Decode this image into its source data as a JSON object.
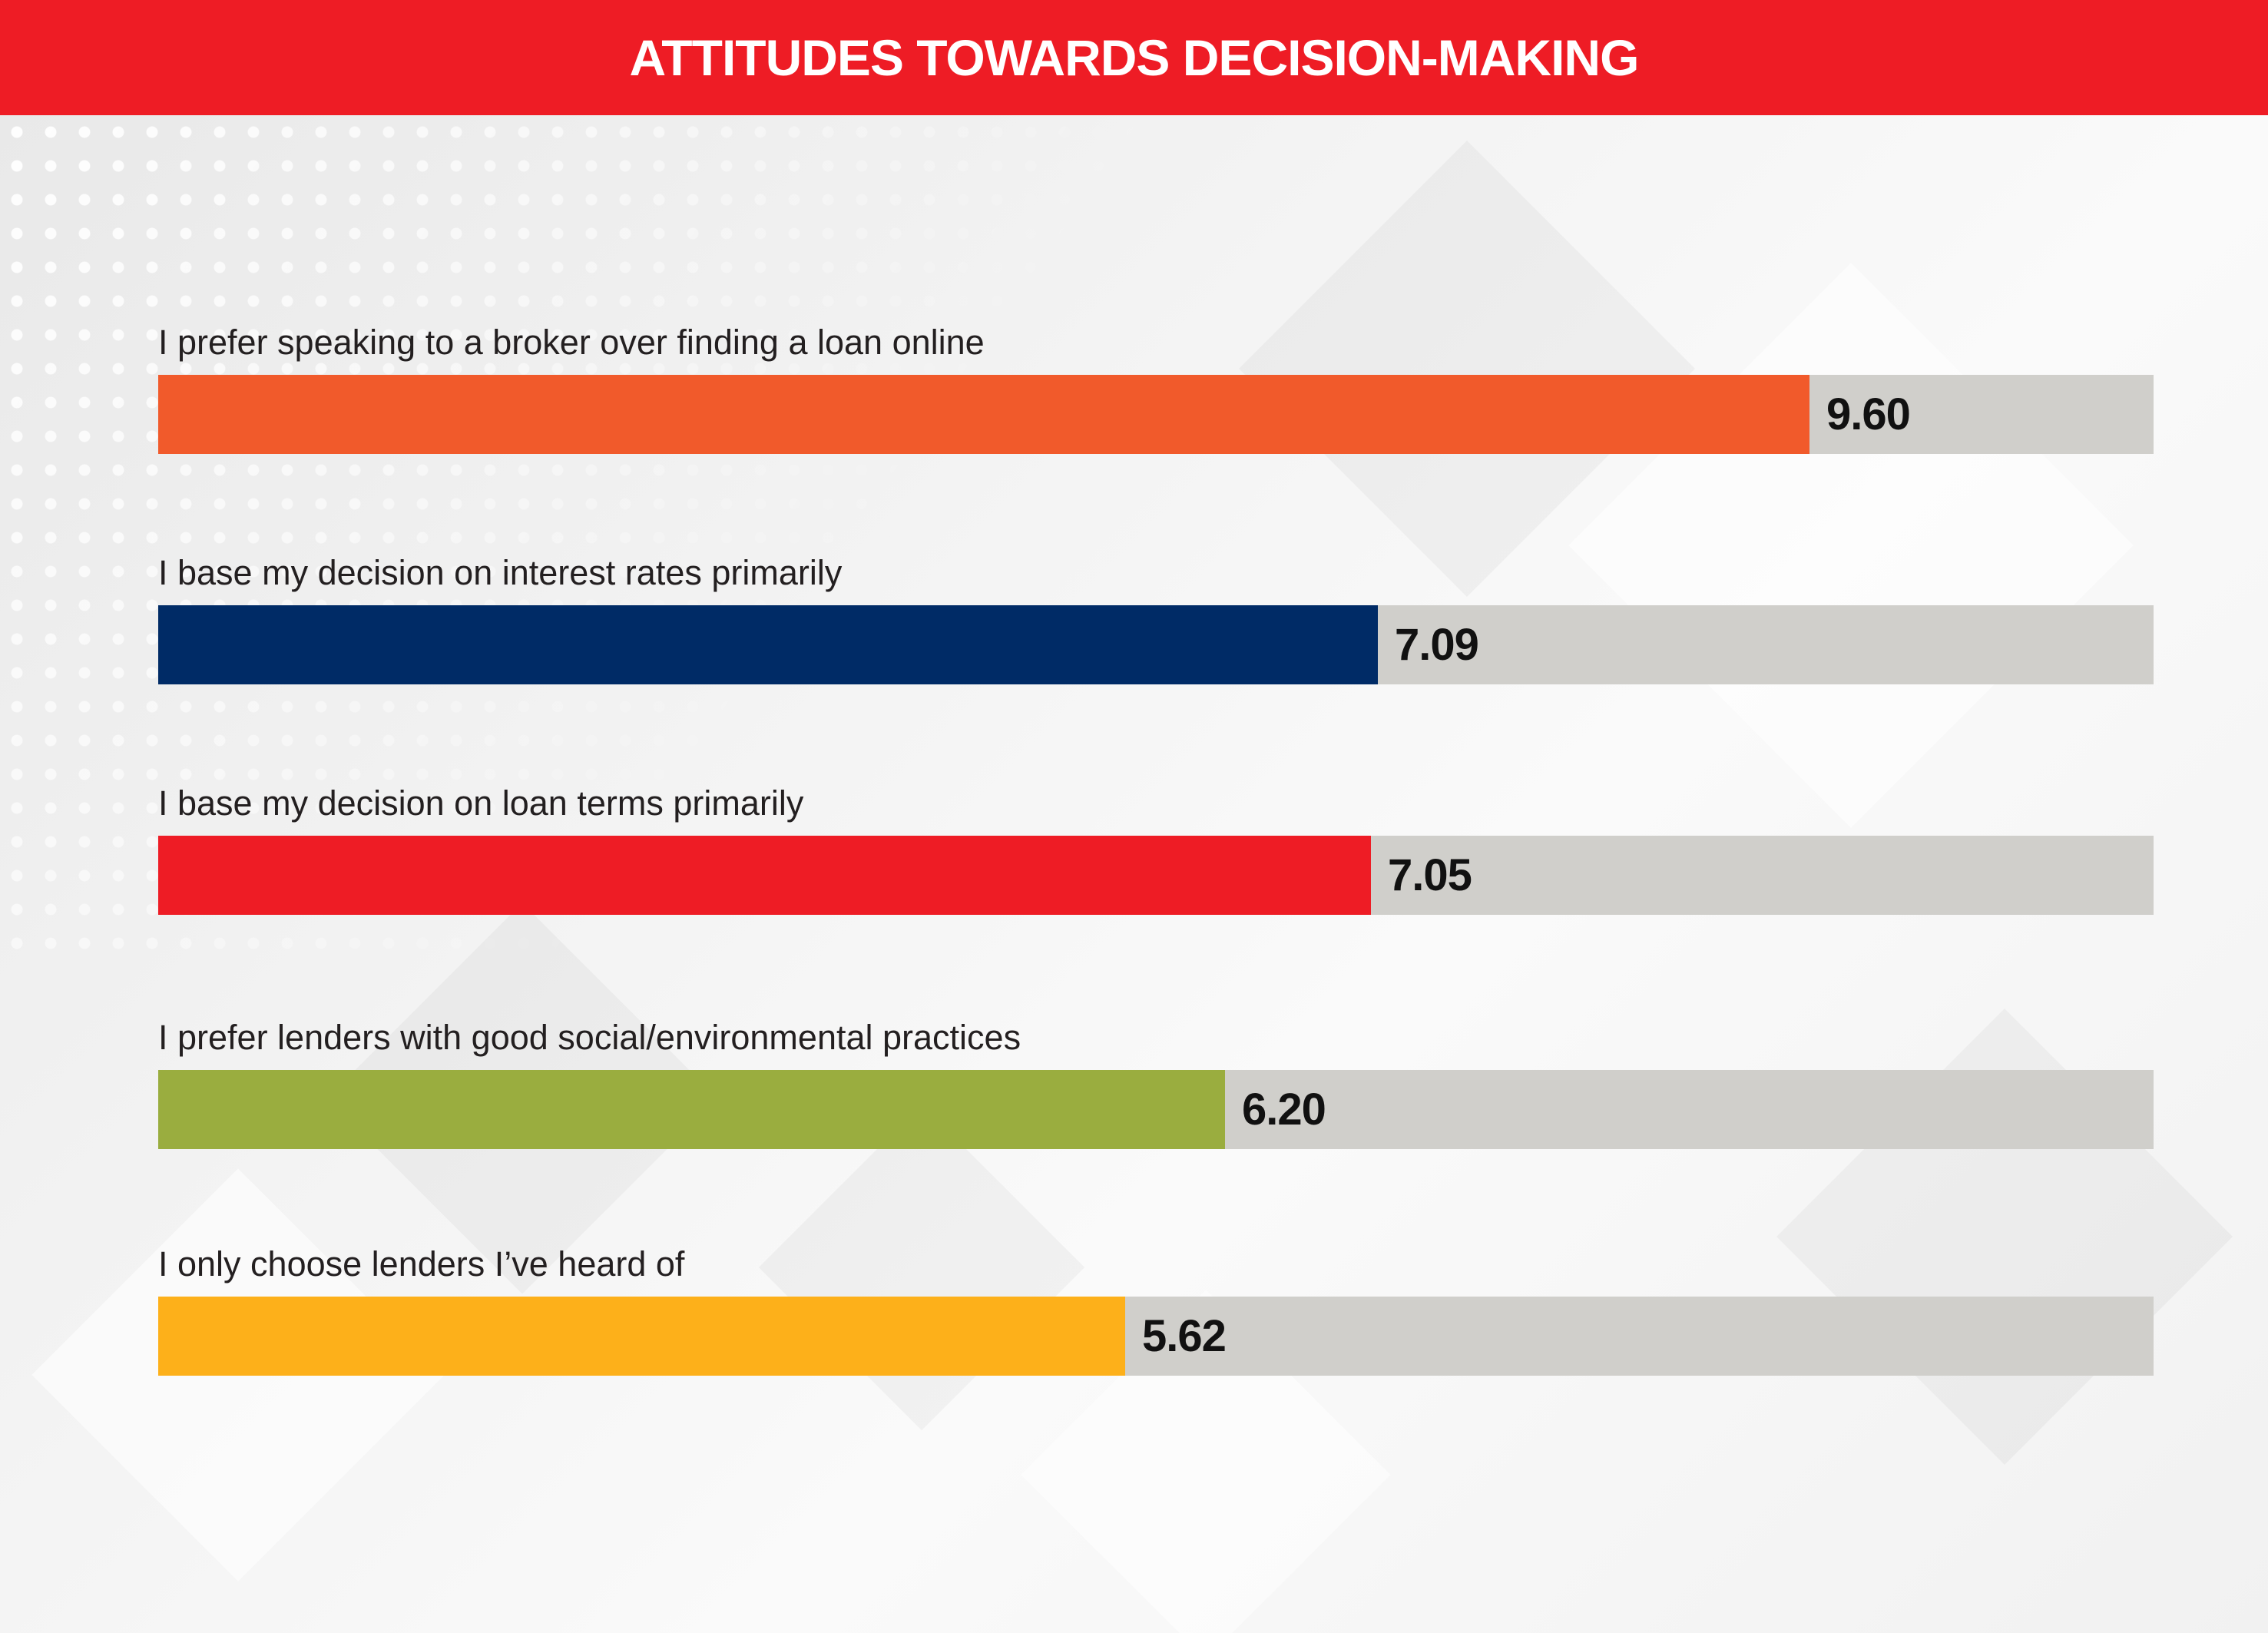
{
  "header": {
    "title": "ATTITUDES TOWARDS DECISION-MAKING"
  },
  "chart_data": {
    "type": "bar",
    "orientation": "horizontal",
    "title": "ATTITUDES TOWARDS DECISION-MAKING",
    "xlim": [
      0,
      11.6
    ],
    "grid": false,
    "categories": [
      "I prefer speaking to a broker over finding a loan online",
      "I base my decision on interest rates primarily",
      "I base my decision on loan terms primarily",
      "I prefer lenders with good social/environmental practices",
      "I only choose lenders I’ve heard of"
    ],
    "values": [
      9.6,
      7.09,
      7.05,
      6.2,
      5.62
    ],
    "value_labels": [
      "9.60",
      "7.09",
      "7.05",
      "6.20",
      "5.62"
    ],
    "colors": [
      "#f15a2b",
      "#002b66",
      "#ee1c25",
      "#9aad3f",
      "#fdb01a"
    ],
    "track_color": "#d0cfcb"
  }
}
